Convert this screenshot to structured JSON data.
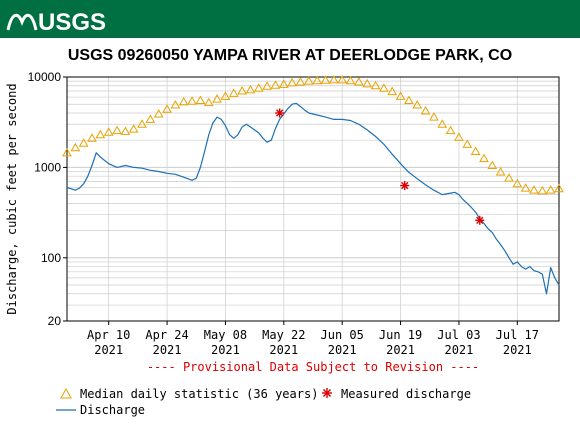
{
  "header": {
    "logo_text": "USGS",
    "color": "#006f41"
  },
  "colors": {
    "median": "#e8a300",
    "discharge": "#1f6fb5",
    "measured": "#dd0000",
    "provisional": "#dd0000",
    "grid": "#cccccc"
  },
  "chart_data": {
    "type": "line",
    "title": "USGS 09260050 YAMPA RIVER AT DEERLODGE PARK, CO",
    "ylabel": "Discharge, cubic feet per second",
    "y_scale": "log",
    "ylim": [
      20,
      10000
    ],
    "y_ticks": [
      {
        "value": 20,
        "label": "20"
      },
      {
        "value": 100,
        "label": "100"
      },
      {
        "value": 1000,
        "label": "1000"
      },
      {
        "value": 10000,
        "label": "10000"
      }
    ],
    "x_range": [
      "2021-03-31",
      "2021-07-27"
    ],
    "x_ticks": [
      {
        "date": "2021-04-10",
        "label": "Apr 10",
        "year": "2021"
      },
      {
        "date": "2021-04-24",
        "label": "Apr 24",
        "year": "2021"
      },
      {
        "date": "2021-05-08",
        "label": "May 08",
        "year": "2021"
      },
      {
        "date": "2021-05-22",
        "label": "May 22",
        "year": "2021"
      },
      {
        "date": "2021-06-05",
        "label": "Jun 05",
        "year": "2021"
      },
      {
        "date": "2021-06-19",
        "label": "Jun 19",
        "year": "2021"
      },
      {
        "date": "2021-07-03",
        "label": "Jul 03",
        "year": "2021"
      },
      {
        "date": "2021-07-17",
        "label": "Jul 17",
        "year": "2021"
      }
    ],
    "grid": true,
    "provisional_note": "---- Provisional Data Subject to Revision ----",
    "legend": {
      "position": "bottom",
      "items": [
        {
          "key": "median",
          "label": "Median daily statistic (36 years)"
        },
        {
          "key": "measured",
          "label": "Measured discharge"
        },
        {
          "key": "discharge",
          "label": "Discharge"
        }
      ]
    },
    "series": [
      {
        "key": "median",
        "style": "triangles",
        "x": [
          "2021-03-31",
          "2021-04-02",
          "2021-04-04",
          "2021-04-06",
          "2021-04-08",
          "2021-04-10",
          "2021-04-12",
          "2021-04-14",
          "2021-04-16",
          "2021-04-18",
          "2021-04-20",
          "2021-04-22",
          "2021-04-24",
          "2021-04-26",
          "2021-04-28",
          "2021-04-30",
          "2021-05-02",
          "2021-05-04",
          "2021-05-06",
          "2021-05-08",
          "2021-05-10",
          "2021-05-12",
          "2021-05-14",
          "2021-05-16",
          "2021-05-18",
          "2021-05-20",
          "2021-05-22",
          "2021-05-24",
          "2021-05-26",
          "2021-05-28",
          "2021-05-30",
          "2021-06-01",
          "2021-06-03",
          "2021-06-05",
          "2021-06-07",
          "2021-06-09",
          "2021-06-11",
          "2021-06-13",
          "2021-06-15",
          "2021-06-17",
          "2021-06-19",
          "2021-06-21",
          "2021-06-23",
          "2021-06-25",
          "2021-06-27",
          "2021-06-29",
          "2021-07-01",
          "2021-07-03",
          "2021-07-05",
          "2021-07-07",
          "2021-07-09",
          "2021-07-11",
          "2021-07-13",
          "2021-07-15",
          "2021-07-17",
          "2021-07-19",
          "2021-07-21",
          "2021-07-23",
          "2021-07-25",
          "2021-07-27"
        ],
        "y": [
          1450,
          1650,
          1850,
          2100,
          2300,
          2450,
          2550,
          2500,
          2650,
          3000,
          3400,
          3900,
          4400,
          4900,
          5300,
          5400,
          5500,
          5200,
          5700,
          6100,
          6600,
          7000,
          7200,
          7500,
          7900,
          8100,
          8300,
          8600,
          8800,
          9000,
          9100,
          9200,
          9300,
          9300,
          9100,
          8800,
          8400,
          8000,
          7500,
          6900,
          6100,
          5500,
          4900,
          4200,
          3600,
          3000,
          2550,
          2150,
          1800,
          1500,
          1250,
          1050,
          890,
          760,
          660,
          590,
          560,
          550,
          560,
          580
        ]
      },
      {
        "key": "discharge",
        "style": "line",
        "x": [
          "2021-03-31",
          "2021-04-01",
          "2021-04-02",
          "2021-04-03",
          "2021-04-04",
          "2021-04-05",
          "2021-04-06",
          "2021-04-07",
          "2021-04-08",
          "2021-04-10",
          "2021-04-12",
          "2021-04-14",
          "2021-04-16",
          "2021-04-18",
          "2021-04-20",
          "2021-04-22",
          "2021-04-24",
          "2021-04-26",
          "2021-04-28",
          "2021-04-30",
          "2021-05-01",
          "2021-05-02",
          "2021-05-03",
          "2021-05-04",
          "2021-05-05",
          "2021-05-06",
          "2021-05-07",
          "2021-05-08",
          "2021-05-09",
          "2021-05-10",
          "2021-05-11",
          "2021-05-12",
          "2021-05-13",
          "2021-05-14",
          "2021-05-16",
          "2021-05-17",
          "2021-05-18",
          "2021-05-19",
          "2021-05-20",
          "2021-05-21",
          "2021-05-22",
          "2021-05-23",
          "2021-05-24",
          "2021-05-25",
          "2021-05-26",
          "2021-05-27",
          "2021-05-28",
          "2021-05-30",
          "2021-06-01",
          "2021-06-03",
          "2021-06-05",
          "2021-06-07",
          "2021-06-09",
          "2021-06-11",
          "2021-06-13",
          "2021-06-15",
          "2021-06-17",
          "2021-06-19",
          "2021-06-21",
          "2021-06-23",
          "2021-06-25",
          "2021-06-27",
          "2021-06-29",
          "2021-07-01",
          "2021-07-02",
          "2021-07-03",
          "2021-07-04",
          "2021-07-05",
          "2021-07-06",
          "2021-07-07",
          "2021-07-08",
          "2021-07-09",
          "2021-07-10",
          "2021-07-11",
          "2021-07-12",
          "2021-07-13",
          "2021-07-14",
          "2021-07-15",
          "2021-07-16",
          "2021-07-17",
          "2021-07-18",
          "2021-07-19",
          "2021-07-20",
          "2021-07-21",
          "2021-07-22",
          "2021-07-23",
          "2021-07-24",
          "2021-07-25",
          "2021-07-26",
          "2021-07-27"
        ],
        "y": [
          600,
          580,
          560,
          590,
          660,
          800,
          1050,
          1450,
          1300,
          1100,
          1000,
          1050,
          1000,
          980,
          930,
          900,
          860,
          840,
          780,
          720,
          760,
          1000,
          1500,
          2300,
          3100,
          3600,
          3400,
          2900,
          2300,
          2100,
          2300,
          2800,
          3000,
          2800,
          2400,
          2100,
          1900,
          2000,
          2700,
          3400,
          3900,
          4500,
          5000,
          5100,
          4700,
          4300,
          4000,
          3800,
          3600,
          3400,
          3400,
          3300,
          3000,
          2600,
          2200,
          1800,
          1400,
          1100,
          880,
          750,
          640,
          560,
          500,
          520,
          530,
          500,
          440,
          400,
          360,
          320,
          270,
          240,
          210,
          190,
          160,
          140,
          120,
          100,
          85,
          90,
          80,
          75,
          80,
          72,
          70,
          66,
          40,
          78,
          60,
          50
        ]
      },
      {
        "key": "measured",
        "style": "asterisk",
        "x": [
          "2021-05-21",
          "2021-06-20",
          "2021-07-08"
        ],
        "y": [
          4000,
          630,
          260
        ]
      }
    ]
  }
}
